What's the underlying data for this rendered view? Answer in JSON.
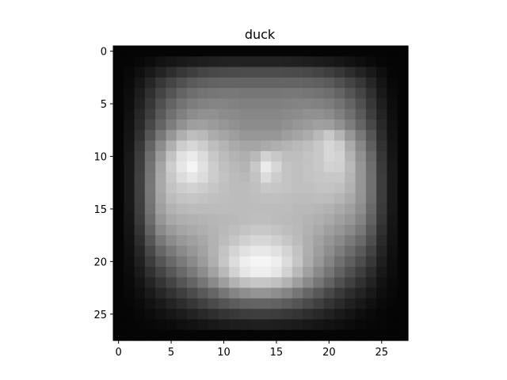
{
  "chart_data": {
    "type": "heatmap",
    "title": "duck",
    "xlabel": "",
    "ylabel": "",
    "colormap": "gray",
    "grid": false,
    "xlim": [
      -0.5,
      27.5
    ],
    "ylim": [
      27.5,
      -0.5
    ],
    "xticks": [
      0,
      5,
      10,
      15,
      20,
      25
    ],
    "yticks": [
      0,
      5,
      10,
      15,
      20,
      25
    ],
    "shape": [
      28,
      28
    ],
    "note_values": "approximate grayscale intensities 0-255 read from image",
    "values": [
      [
        5,
        5,
        5,
        5,
        5,
        5,
        5,
        5,
        5,
        5,
        5,
        5,
        5,
        5,
        5,
        5,
        5,
        5,
        5,
        5,
        5,
        5,
        5,
        5,
        5,
        5,
        5,
        5
      ],
      [
        5,
        5,
        8,
        12,
        18,
        22,
        25,
        28,
        30,
        32,
        33,
        34,
        34,
        34,
        34,
        34,
        33,
        32,
        30,
        28,
        25,
        22,
        18,
        14,
        10,
        6,
        5,
        5
      ],
      [
        5,
        8,
        15,
        25,
        35,
        45,
        55,
        62,
        68,
        72,
        74,
        75,
        76,
        76,
        76,
        76,
        75,
        74,
        72,
        68,
        62,
        55,
        45,
        35,
        25,
        14,
        6,
        5
      ],
      [
        5,
        10,
        22,
        38,
        55,
        68,
        80,
        90,
        95,
        98,
        100,
        100,
        100,
        100,
        100,
        100,
        100,
        100,
        98,
        95,
        90,
        80,
        68,
        55,
        38,
        20,
        8,
        5
      ],
      [
        5,
        12,
        28,
        48,
        68,
        85,
        100,
        110,
        115,
        118,
        120,
        120,
        118,
        118,
        118,
        118,
        120,
        120,
        118,
        115,
        110,
        100,
        85,
        68,
        48,
        25,
        10,
        5
      ],
      [
        5,
        14,
        32,
        55,
        80,
        100,
        115,
        125,
        130,
        132,
        132,
        130,
        128,
        128,
        128,
        128,
        130,
        132,
        132,
        130,
        125,
        115,
        100,
        80,
        55,
        30,
        12,
        5
      ],
      [
        5,
        16,
        38,
        62,
        90,
        112,
        128,
        140,
        145,
        145,
        140,
        138,
        135,
        135,
        135,
        135,
        138,
        140,
        145,
        145,
        140,
        128,
        112,
        90,
        62,
        35,
        14,
        5
      ],
      [
        5,
        18,
        42,
        72,
        100,
        125,
        145,
        158,
        160,
        155,
        150,
        145,
        140,
        140,
        140,
        140,
        145,
        150,
        155,
        160,
        158,
        145,
        125,
        100,
        72,
        40,
        16,
        5
      ],
      [
        5,
        20,
        48,
        85,
        120,
        150,
        175,
        190,
        185,
        172,
        165,
        158,
        150,
        150,
        150,
        150,
        158,
        165,
        172,
        185,
        200,
        180,
        150,
        120,
        85,
        45,
        18,
        5
      ],
      [
        5,
        22,
        55,
        100,
        140,
        175,
        205,
        215,
        205,
        190,
        180,
        170,
        165,
        165,
        170,
        175,
        180,
        185,
        190,
        200,
        215,
        205,
        170,
        135,
        95,
        50,
        20,
        5
      ],
      [
        5,
        24,
        60,
        110,
        155,
        195,
        225,
        235,
        220,
        200,
        188,
        180,
        175,
        185,
        210,
        200,
        190,
        190,
        195,
        200,
        215,
        210,
        180,
        145,
        105,
        55,
        22,
        5
      ],
      [
        5,
        25,
        62,
        115,
        165,
        205,
        230,
        245,
        225,
        205,
        192,
        185,
        180,
        200,
        235,
        215,
        195,
        192,
        195,
        200,
        210,
        208,
        185,
        150,
        110,
        58,
        24,
        5
      ],
      [
        5,
        25,
        64,
        118,
        168,
        200,
        220,
        230,
        220,
        205,
        195,
        188,
        185,
        195,
        220,
        205,
        195,
        192,
        195,
        198,
        200,
        200,
        182,
        150,
        112,
        60,
        25,
        5
      ],
      [
        5,
        25,
        64,
        120,
        168,
        195,
        205,
        210,
        205,
        198,
        192,
        188,
        188,
        192,
        200,
        198,
        195,
        192,
        192,
        195,
        195,
        192,
        178,
        150,
        112,
        60,
        25,
        5
      ],
      [
        5,
        25,
        63,
        118,
        165,
        188,
        195,
        198,
        195,
        192,
        190,
        188,
        188,
        190,
        192,
        192,
        190,
        188,
        188,
        190,
        188,
        182,
        170,
        148,
        110,
        60,
        25,
        5
      ],
      [
        5,
        24,
        62,
        115,
        160,
        178,
        185,
        188,
        188,
        188,
        188,
        188,
        188,
        188,
        188,
        188,
        188,
        185,
        185,
        182,
        178,
        170,
        160,
        142,
        105,
        58,
        24,
        5
      ],
      [
        5,
        22,
        58,
        108,
        150,
        168,
        175,
        178,
        180,
        182,
        184,
        186,
        188,
        190,
        190,
        188,
        186,
        184,
        180,
        176,
        170,
        160,
        150,
        132,
        98,
        54,
        22,
        5
      ],
      [
        5,
        20,
        52,
        98,
        138,
        155,
        165,
        170,
        175,
        180,
        185,
        190,
        195,
        200,
        200,
        195,
        190,
        185,
        178,
        170,
        160,
        150,
        138,
        120,
        88,
        48,
        20,
        5
      ],
      [
        5,
        18,
        45,
        85,
        120,
        140,
        152,
        160,
        168,
        178,
        188,
        198,
        208,
        215,
        215,
        208,
        198,
        188,
        175,
        162,
        150,
        138,
        122,
        105,
        78,
        42,
        18,
        5
      ],
      [
        5,
        16,
        38,
        72,
        102,
        122,
        138,
        150,
        162,
        178,
        195,
        212,
        225,
        232,
        232,
        225,
        212,
        195,
        175,
        158,
        142,
        125,
        108,
        90,
        66,
        36,
        16,
        5
      ],
      [
        5,
        14,
        32,
        60,
        85,
        105,
        122,
        138,
        155,
        175,
        198,
        220,
        238,
        245,
        245,
        238,
        220,
        198,
        172,
        152,
        132,
        112,
        95,
        76,
        55,
        30,
        14,
        5
      ],
      [
        5,
        12,
        26,
        48,
        68,
        88,
        105,
        122,
        140,
        162,
        185,
        210,
        230,
        238,
        238,
        230,
        210,
        185,
        160,
        138,
        118,
        98,
        80,
        62,
        44,
        24,
        12,
        5
      ],
      [
        5,
        10,
        20,
        36,
        52,
        68,
        85,
        100,
        118,
        138,
        158,
        178,
        192,
        198,
        198,
        192,
        178,
        158,
        138,
        118,
        98,
        80,
        64,
        48,
        34,
        18,
        10,
        5
      ],
      [
        5,
        8,
        15,
        26,
        38,
        50,
        62,
        75,
        88,
        102,
        118,
        132,
        142,
        148,
        148,
        142,
        132,
        118,
        102,
        88,
        72,
        58,
        45,
        35,
        24,
        14,
        8,
        5
      ],
      [
        5,
        6,
        10,
        18,
        26,
        35,
        44,
        54,
        64,
        74,
        84,
        92,
        98,
        100,
        100,
        98,
        92,
        84,
        74,
        64,
        52,
        42,
        32,
        24,
        16,
        10,
        6,
        5
      ],
      [
        5,
        5,
        8,
        12,
        17,
        22,
        28,
        34,
        40,
        46,
        52,
        56,
        60,
        62,
        62,
        60,
        56,
        52,
        46,
        40,
        33,
        26,
        20,
        14,
        10,
        7,
        5,
        5
      ],
      [
        5,
        5,
        6,
        8,
        10,
        12,
        15,
        18,
        21,
        24,
        27,
        29,
        30,
        31,
        31,
        30,
        29,
        27,
        24,
        21,
        18,
        15,
        12,
        9,
        7,
        6,
        5,
        5
      ],
      [
        5,
        5,
        5,
        5,
        5,
        5,
        5,
        5,
        5,
        5,
        5,
        5,
        5,
        5,
        5,
        5,
        5,
        5,
        5,
        5,
        5,
        5,
        5,
        5,
        5,
        5,
        5,
        5
      ]
    ]
  }
}
